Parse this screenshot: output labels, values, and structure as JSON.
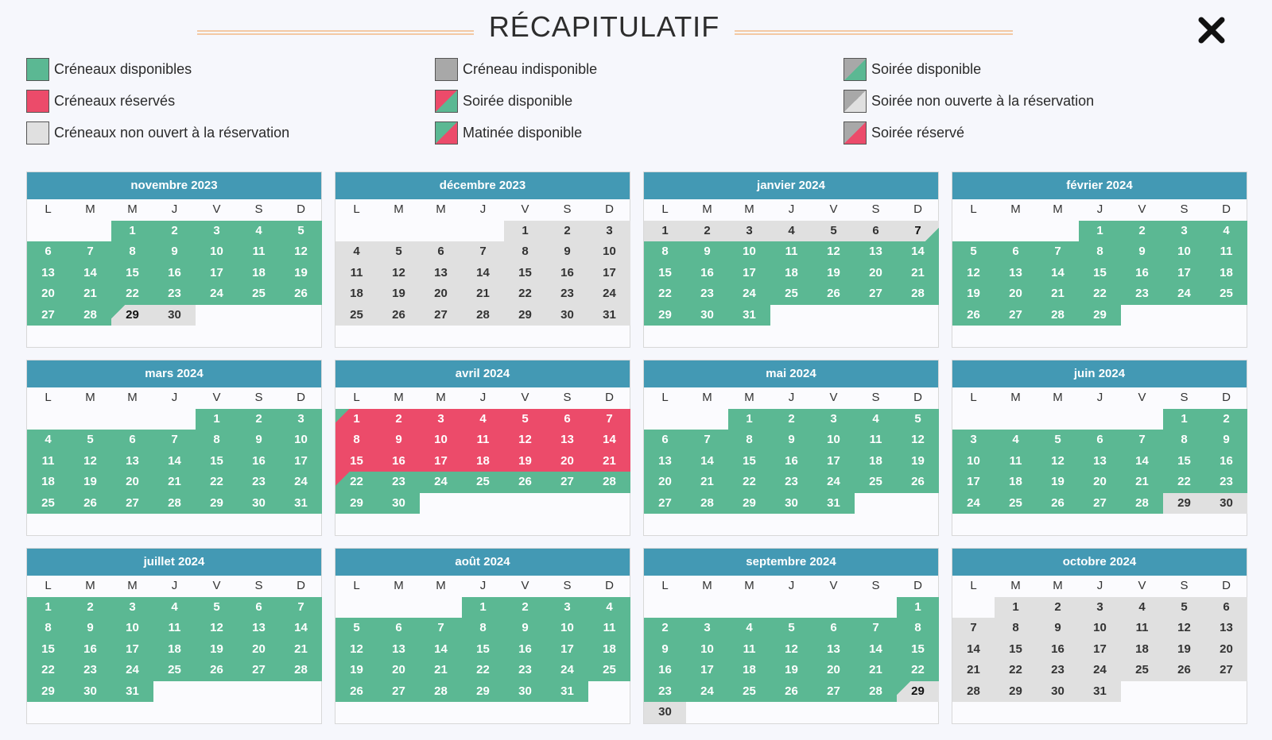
{
  "header": {
    "title": "RÉCAPITULATIF"
  },
  "legend": [
    {
      "label": "Créneaux disponibles",
      "swatch": "green"
    },
    {
      "label": "Créneaux réservés",
      "swatch": "red"
    },
    {
      "label": "Créneaux non ouvert à la réservation",
      "swatch": "lightgrey"
    },
    {
      "label": "Créneau indisponible",
      "swatch": "grey"
    },
    {
      "label": "Soirée disponible",
      "swatch": "red-green"
    },
    {
      "label": "Matinée disponible",
      "swatch": "green-red"
    },
    {
      "label": "Soirée disponible",
      "swatch": "grey-green"
    },
    {
      "label": "Soirée non ouverte à la réservation",
      "swatch": "grey-light"
    },
    {
      "label": "Soirée réservé",
      "swatch": "grey-red"
    }
  ],
  "weekdays": [
    "L",
    "M",
    "M",
    "J",
    "V",
    "S",
    "D"
  ],
  "colors": {
    "green": "#5bb893",
    "red": "#ec4b6a",
    "grey": "#e0e0e0",
    "header": "#4399b4"
  },
  "months": [
    {
      "name": "novembre 2023",
      "offset": 2,
      "days": 30,
      "states": [
        "green",
        "green",
        "green",
        "green",
        "green",
        "green",
        "green",
        "green",
        "green",
        "green",
        "green",
        "green",
        "green",
        "green",
        "green",
        "green",
        "green",
        "green",
        "green",
        "green",
        "green",
        "green",
        "green",
        "green",
        "green",
        "green",
        "green",
        "green",
        "green-grey",
        "grey"
      ]
    },
    {
      "name": "décembre 2023",
      "offset": 4,
      "days": 31,
      "states": [
        "grey",
        "grey",
        "grey",
        "grey",
        "grey",
        "grey",
        "grey",
        "grey",
        "grey",
        "grey",
        "grey",
        "grey",
        "grey",
        "grey",
        "grey",
        "grey",
        "grey",
        "grey",
        "grey",
        "grey",
        "grey",
        "grey",
        "grey",
        "grey",
        "grey",
        "grey",
        "grey",
        "grey",
        "grey",
        "grey",
        "grey"
      ]
    },
    {
      "name": "janvier 2024",
      "offset": 0,
      "days": 31,
      "states": [
        "grey",
        "grey",
        "grey",
        "grey",
        "grey",
        "grey",
        "grey-green",
        "green",
        "green",
        "green",
        "green",
        "green",
        "green",
        "green",
        "green",
        "green",
        "green",
        "green",
        "green",
        "green",
        "green",
        "green",
        "green",
        "green",
        "green",
        "green",
        "green",
        "green",
        "green",
        "green",
        "green"
      ]
    },
    {
      "name": "février 2024",
      "offset": 3,
      "days": 29,
      "states": [
        "green",
        "green",
        "green",
        "green",
        "green",
        "green",
        "green",
        "green",
        "green",
        "green",
        "green",
        "green",
        "green",
        "green",
        "green",
        "green",
        "green",
        "green",
        "green",
        "green",
        "green",
        "green",
        "green",
        "green",
        "green",
        "green",
        "green",
        "green",
        "green"
      ]
    },
    {
      "name": "mars 2024",
      "offset": 4,
      "days": 31,
      "states": [
        "green",
        "green",
        "green",
        "green",
        "green",
        "green",
        "green",
        "green",
        "green",
        "green",
        "green",
        "green",
        "green",
        "green",
        "green",
        "green",
        "green",
        "green",
        "green",
        "green",
        "green",
        "green",
        "green",
        "green",
        "green",
        "green",
        "green",
        "green",
        "green",
        "green",
        "green"
      ]
    },
    {
      "name": "avril 2024",
      "offset": 0,
      "days": 30,
      "states": [
        "green-red",
        "red",
        "red",
        "red",
        "red",
        "red",
        "red",
        "red",
        "red",
        "red",
        "red",
        "red",
        "red",
        "red",
        "red",
        "red",
        "red",
        "red",
        "red",
        "red",
        "red",
        "red-green",
        "green",
        "green",
        "green",
        "green",
        "green",
        "green",
        "green",
        "green"
      ]
    },
    {
      "name": "mai 2024",
      "offset": 2,
      "days": 31,
      "states": [
        "green",
        "green",
        "green",
        "green",
        "green",
        "green",
        "green",
        "green",
        "green",
        "green",
        "green",
        "green",
        "green",
        "green",
        "green",
        "green",
        "green",
        "green",
        "green",
        "green",
        "green",
        "green",
        "green",
        "green",
        "green",
        "green",
        "green",
        "green",
        "green",
        "green",
        "green"
      ]
    },
    {
      "name": "juin 2024",
      "offset": 5,
      "days": 30,
      "states": [
        "green",
        "green",
        "green",
        "green",
        "green",
        "green",
        "green",
        "green",
        "green",
        "green",
        "green",
        "green",
        "green",
        "green",
        "green",
        "green",
        "green",
        "green",
        "green",
        "green",
        "green",
        "green",
        "green",
        "green",
        "green",
        "green",
        "green",
        "green",
        "grey",
        "grey"
      ]
    },
    {
      "name": "juillet 2024",
      "offset": 0,
      "days": 31,
      "states": [
        "green",
        "green",
        "green",
        "green",
        "green",
        "green",
        "green",
        "green",
        "green",
        "green",
        "green",
        "green",
        "green",
        "green",
        "green",
        "green",
        "green",
        "green",
        "green",
        "green",
        "green",
        "green",
        "green",
        "green",
        "green",
        "green",
        "green",
        "green",
        "green",
        "green",
        "green"
      ]
    },
    {
      "name": "août 2024",
      "offset": 3,
      "days": 31,
      "states": [
        "green",
        "green",
        "green",
        "green",
        "green",
        "green",
        "green",
        "green",
        "green",
        "green",
        "green",
        "green",
        "green",
        "green",
        "green",
        "green",
        "green",
        "green",
        "green",
        "green",
        "green",
        "green",
        "green",
        "green",
        "green",
        "green",
        "green",
        "green",
        "green",
        "green",
        "green"
      ]
    },
    {
      "name": "septembre 2024",
      "offset": 6,
      "days": 30,
      "states": [
        "green",
        "green",
        "green",
        "green",
        "green",
        "green",
        "green",
        "green",
        "green",
        "green",
        "green",
        "green",
        "green",
        "green",
        "green",
        "green",
        "green",
        "green",
        "green",
        "green",
        "green",
        "green",
        "green",
        "green",
        "green",
        "green",
        "green",
        "green",
        "green-grey",
        "grey"
      ]
    },
    {
      "name": "octobre 2024",
      "offset": 1,
      "days": 31,
      "states": [
        "grey",
        "grey",
        "grey",
        "grey",
        "grey",
        "grey",
        "grey",
        "grey",
        "grey",
        "grey",
        "grey",
        "grey",
        "grey",
        "grey",
        "grey",
        "grey",
        "grey",
        "grey",
        "grey",
        "grey",
        "grey",
        "grey",
        "grey",
        "grey",
        "grey",
        "grey",
        "grey",
        "grey",
        "grey",
        "grey",
        "grey"
      ]
    }
  ]
}
